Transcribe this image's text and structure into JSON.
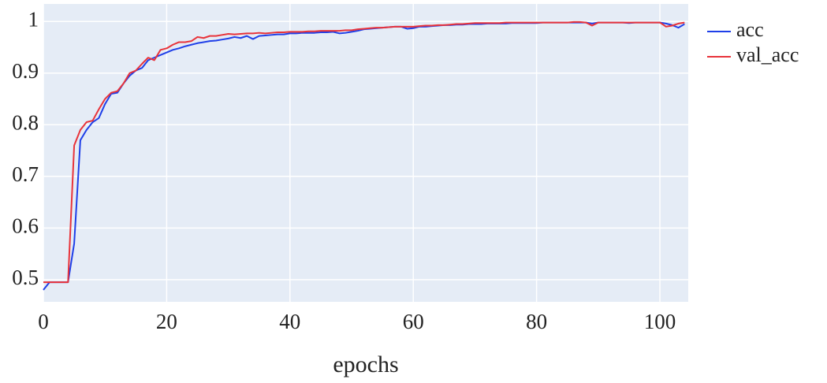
{
  "chart_data": {
    "type": "line",
    "x_label": "epochs",
    "x": [
      0,
      1,
      2,
      3,
      4,
      5,
      6,
      7,
      8,
      9,
      10,
      11,
      12,
      13,
      14,
      15,
      16,
      17,
      18,
      19,
      20,
      21,
      22,
      23,
      24,
      25,
      26,
      27,
      28,
      29,
      30,
      31,
      32,
      33,
      34,
      35,
      36,
      37,
      38,
      39,
      40,
      41,
      42,
      43,
      44,
      45,
      46,
      47,
      48,
      49,
      50,
      51,
      52,
      53,
      54,
      55,
      56,
      57,
      58,
      59,
      60,
      61,
      62,
      63,
      64,
      65,
      66,
      67,
      68,
      69,
      70,
      71,
      72,
      73,
      74,
      75,
      76,
      77,
      78,
      79,
      80,
      81,
      82,
      83,
      84,
      85,
      86,
      87,
      88,
      89,
      90,
      91,
      92,
      93,
      94,
      95,
      96,
      97,
      98,
      99,
      100,
      101,
      102,
      103,
      104
    ],
    "series": [
      {
        "name": "acc",
        "color": "#1f3fe8",
        "values": [
          0.48,
          0.495,
          0.495,
          0.495,
          0.495,
          0.57,
          0.77,
          0.79,
          0.805,
          0.813,
          0.84,
          0.86,
          0.862,
          0.88,
          0.895,
          0.905,
          0.91,
          0.925,
          0.93,
          0.935,
          0.94,
          0.945,
          0.948,
          0.952,
          0.955,
          0.958,
          0.96,
          0.962,
          0.963,
          0.965,
          0.967,
          0.97,
          0.968,
          0.972,
          0.966,
          0.972,
          0.973,
          0.974,
          0.975,
          0.975,
          0.977,
          0.977,
          0.978,
          0.978,
          0.978,
          0.979,
          0.979,
          0.98,
          0.977,
          0.978,
          0.98,
          0.982,
          0.985,
          0.986,
          0.987,
          0.988,
          0.989,
          0.99,
          0.99,
          0.986,
          0.987,
          0.99,
          0.99,
          0.991,
          0.992,
          0.993,
          0.993,
          0.994,
          0.994,
          0.995,
          0.995,
          0.995,
          0.996,
          0.996,
          0.996,
          0.996,
          0.997,
          0.997,
          0.997,
          0.997,
          0.997,
          0.998,
          0.998,
          0.998,
          0.998,
          0.998,
          0.998,
          0.998,
          0.998,
          0.996,
          0.998,
          0.998,
          0.998,
          0.998,
          0.998,
          0.997,
          0.998,
          0.998,
          0.998,
          0.998,
          0.998,
          0.996,
          0.993,
          0.988,
          0.995
        ]
      },
      {
        "name": "val_acc",
        "color": "#e8333a",
        "values": [
          0.495,
          0.495,
          0.495,
          0.495,
          0.495,
          0.76,
          0.79,
          0.805,
          0.808,
          0.83,
          0.85,
          0.862,
          0.865,
          0.88,
          0.9,
          0.905,
          0.918,
          0.93,
          0.925,
          0.945,
          0.948,
          0.955,
          0.96,
          0.96,
          0.962,
          0.97,
          0.968,
          0.972,
          0.972,
          0.974,
          0.976,
          0.975,
          0.976,
          0.977,
          0.977,
          0.978,
          0.977,
          0.978,
          0.979,
          0.979,
          0.98,
          0.98,
          0.98,
          0.981,
          0.981,
          0.982,
          0.982,
          0.982,
          0.982,
          0.983,
          0.983,
          0.985,
          0.986,
          0.987,
          0.988,
          0.988,
          0.989,
          0.99,
          0.99,
          0.99,
          0.99,
          0.991,
          0.992,
          0.992,
          0.993,
          0.993,
          0.994,
          0.995,
          0.995,
          0.996,
          0.997,
          0.997,
          0.997,
          0.997,
          0.997,
          0.998,
          0.998,
          0.998,
          0.998,
          0.998,
          0.998,
          0.998,
          0.998,
          0.998,
          0.998,
          0.998,
          0.999,
          0.999,
          0.998,
          0.992,
          0.998,
          0.998,
          0.998,
          0.998,
          0.998,
          0.998,
          0.998,
          0.998,
          0.998,
          0.998,
          0.998,
          0.99,
          0.992,
          0.996,
          0.998
        ]
      }
    ],
    "xlim": [
      0,
      104.6
    ],
    "xticks": [
      0,
      20,
      40,
      60,
      80,
      100
    ],
    "ylim": [
      0.457,
      1.034
    ],
    "yticks": [
      0.5,
      0.6,
      0.7,
      0.8,
      0.9,
      1
    ],
    "grid": true,
    "legend": "right"
  }
}
